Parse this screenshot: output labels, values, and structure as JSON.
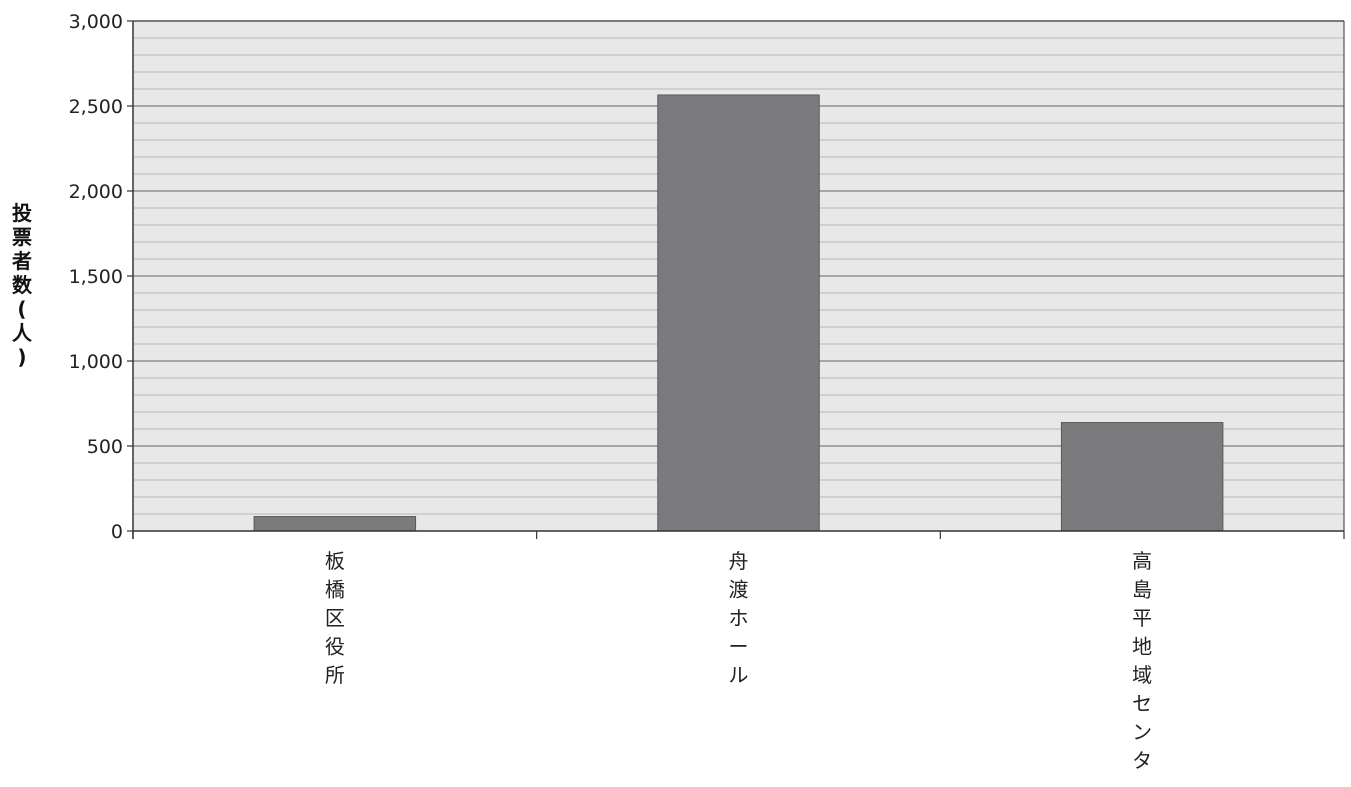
{
  "chart_data": {
    "type": "bar",
    "title": "",
    "xlabel": "",
    "ylabel": "投票者数(人)",
    "categories": [
      "板橋区役所",
      "舟渡ホール",
      "高島平地域センター"
    ],
    "values": [
      85,
      2565,
      638
    ],
    "ylim": [
      0,
      3000
    ],
    "y_ticks": [
      0,
      500,
      1000,
      1500,
      2000,
      2500,
      3000
    ],
    "y_tick_labels": [
      "0",
      "500",
      "1,000",
      "1,500",
      "2,000",
      "2,500",
      "3,000"
    ],
    "minor_gridlines_per_major": 5,
    "grid": true,
    "legend": "none",
    "colors": {
      "bar_fill": "#7b7b7d",
      "bar_stroke": "#5a5a5a",
      "plot_background": "#e8e8e8",
      "major_grid": "#8f8f8f",
      "minor_grid": "#b8b8b8",
      "axis": "#333333"
    }
  }
}
